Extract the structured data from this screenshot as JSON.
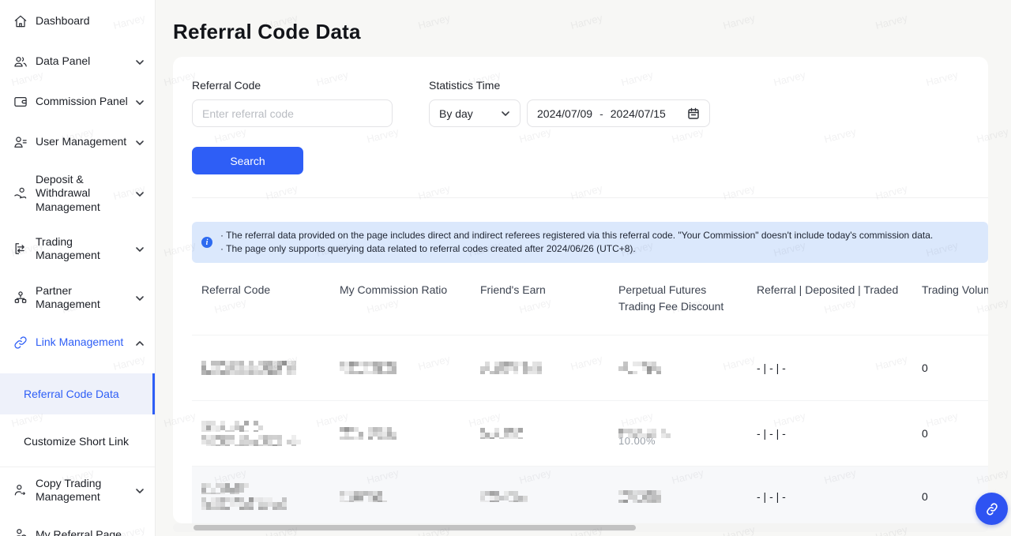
{
  "page": {
    "title": "Referral Code Data"
  },
  "colors": {
    "accent": "#2e5ef6",
    "banner_bg": "#dbe8fc",
    "search_button": "#2e5ef6"
  },
  "watermark": {
    "text": "Harvey"
  },
  "sidebar": {
    "items": [
      {
        "label": "Dashboard",
        "icon": "home-icon",
        "chevron": null
      },
      {
        "label": "Data Panel",
        "icon": "users-icon",
        "chevron": "down"
      },
      {
        "label": "Commission Panel",
        "icon": "wallet-icon",
        "chevron": "down"
      },
      {
        "label": "User Management",
        "icon": "user-list-icon",
        "chevron": "down"
      },
      {
        "label": "Deposit & Withdrawal Management",
        "icon": "hand-coin-icon",
        "chevron": "down"
      },
      {
        "label": "Trading Management",
        "icon": "transfer-icon",
        "chevron": "down"
      },
      {
        "label": "Partner Management",
        "icon": "org-chart-icon",
        "chevron": "down"
      },
      {
        "label": "Link Management",
        "icon": "link-icon",
        "chevron": "up"
      },
      {
        "label": "Referral Code Data"
      },
      {
        "label": "Customize Short Link"
      },
      {
        "label": "Copy Trading Management",
        "icon": "user-arrows-icon",
        "chevron": "down"
      },
      {
        "label": "My Referral Page",
        "icon": "user-plus-icon",
        "chevron": null
      }
    ]
  },
  "filters": {
    "referral_code_label": "Referral Code",
    "referral_code_placeholder": "Enter referral code",
    "statistics_time_label": "Statistics Time",
    "period_value": "By day",
    "date_start": "2024/07/09",
    "date_separator": "-",
    "date_end": "2024/07/15",
    "search_label": "Search"
  },
  "notice": {
    "line1": "The referral data provided on the page includes direct and indirect referees registered via this referral code. \"Your Commission\" doesn't include today's commission data.",
    "line2": "The page only supports querying data related to referral codes created after 2024/06/26 (UTC+8)."
  },
  "table": {
    "columns": [
      "Referral Code",
      "My Commission Ratio",
      "Friend's Earn",
      "Perpetual Futures Trading Fee Discount",
      "Referral | Deposited | Traded",
      "Trading Volume (USDT)"
    ],
    "rows": [
      {
        "referral_deposited_traded": "- | - | -",
        "trading_volume": "0"
      },
      {
        "fee_discount_partial": "10.00%",
        "referral_deposited_traded": "- | - | -",
        "trading_volume": "0"
      },
      {
        "referral_deposited_traded": "- | - | -",
        "trading_volume": "0"
      }
    ]
  }
}
